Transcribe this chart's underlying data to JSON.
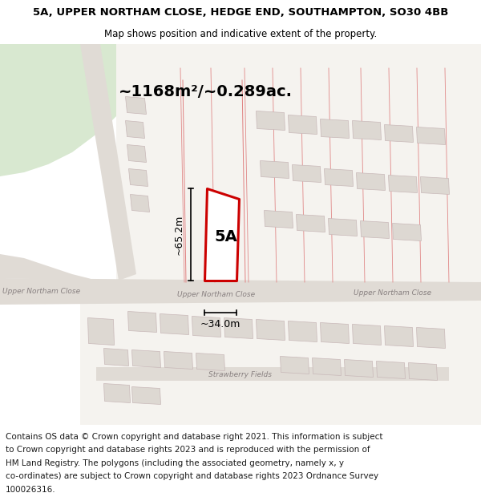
{
  "title_line1": "5A, UPPER NORTHAM CLOSE, HEDGE END, SOUTHAMPTON, SO30 4BB",
  "title_line2": "Map shows position and indicative extent of the property.",
  "area_text": "~1168m²/~0.289ac.",
  "label_5A": "5A",
  "dim_height": "~65.2m",
  "dim_width": "~34.0m",
  "road_label_left": "Upper Northam Close",
  "road_label_center": "Upper Northam Close",
  "road_label_right": "Upper Northam Close",
  "strawberry_label": "Strawberry Fields",
  "footer_lines": [
    "Contains OS data © Crown copyright and database right 2021. This information is subject",
    "to Crown copyright and database rights 2023 and is reproduced with the permission of",
    "HM Land Registry. The polygons (including the associated geometry, namely x, y",
    "co-ordinates) are subject to Crown copyright and database rights 2023 Ordnance Survey",
    "100026316."
  ],
  "plot_outline_color": "#cc0000",
  "green_color": "#d8e8d0",
  "road_fill": "#e0dbd5",
  "building_fill": "#ddd8d2",
  "building_edge": "#c8b8b8",
  "map_bg": "#f0eeea",
  "plot_line_color": "#e08080",
  "text_color": "#000000",
  "road_text_color": "#888080",
  "title_fontsize": 9.5,
  "subtitle_fontsize": 8.5,
  "area_fontsize": 14,
  "label_fontsize": 14,
  "dim_fontsize": 9,
  "road_label_fontsize": 6.5,
  "footer_fontsize": 7.5
}
